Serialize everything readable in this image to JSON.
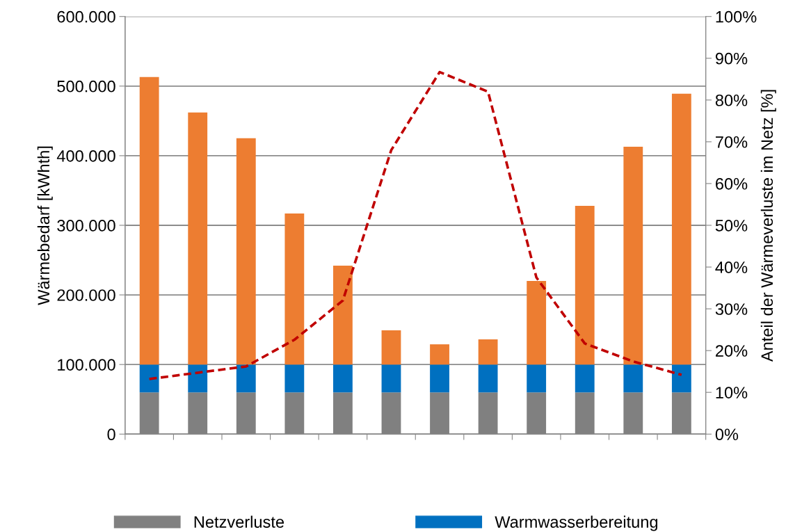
{
  "chart_data": {
    "type": "bar",
    "stacked": true,
    "ylabel": "Wärmebedarf [kWhth]",
    "y2label": "Anteil der Wärmeverluste im Netz [%]",
    "categories": [
      null,
      null,
      null,
      null,
      null,
      null,
      null,
      null,
      null,
      null,
      null,
      null
    ],
    "series": [
      {
        "name": "Netzverluste",
        "color": "#808080",
        "values": [
          60000,
          60000,
          60000,
          60000,
          60000,
          60000,
          60000,
          60000,
          60000,
          60000,
          60000,
          60000
        ]
      },
      {
        "name": "Warmwasserbereitung",
        "color": "#0070c0",
        "values": [
          40000,
          40000,
          40000,
          40000,
          40000,
          40000,
          40000,
          40000,
          40000,
          40000,
          40000,
          40000
        ]
      },
      {
        "color": "#ed7d31",
        "values": [
          413000,
          362000,
          325000,
          217000,
          142000,
          49000,
          29000,
          36000,
          120000,
          228000,
          313000,
          389000
        ]
      },
      {
        "type": "line",
        "axis": "y2",
        "color": "#c00000",
        "line_style": "dashed",
        "marker": "none",
        "values": [
          13.2,
          14.7,
          16.2,
          22.6,
          32,
          68,
          86.7,
          82,
          37.5,
          21.7,
          17.4,
          14.2
        ]
      }
    ],
    "ylim": [
      0,
      600000
    ],
    "yticks": [
      {
        "value": 0,
        "label": "0"
      },
      {
        "value": 100000,
        "label": "100.000"
      },
      {
        "value": 200000,
        "label": "200.000"
      },
      {
        "value": 300000,
        "label": "300.000"
      },
      {
        "value": 400000,
        "label": "400.000"
      },
      {
        "value": 500000,
        "label": "500.000"
      },
      {
        "value": 600000,
        "label": "600.000"
      }
    ],
    "y2lim": [
      0,
      100
    ],
    "y2ticks": [
      {
        "value": 0,
        "label": "0%"
      },
      {
        "value": 10,
        "label": "10%"
      },
      {
        "value": 20,
        "label": "20%"
      },
      {
        "value": 30,
        "label": "30%"
      },
      {
        "value": 40,
        "label": "40%"
      },
      {
        "value": 50,
        "label": "50%"
      },
      {
        "value": 60,
        "label": "60%"
      },
      {
        "value": 70,
        "label": "70%"
      },
      {
        "value": 80,
        "label": "80%"
      },
      {
        "value": 90,
        "label": "90%"
      },
      {
        "value": 100,
        "label": "100%"
      }
    ],
    "grid": "y",
    "legend": "bottom"
  }
}
